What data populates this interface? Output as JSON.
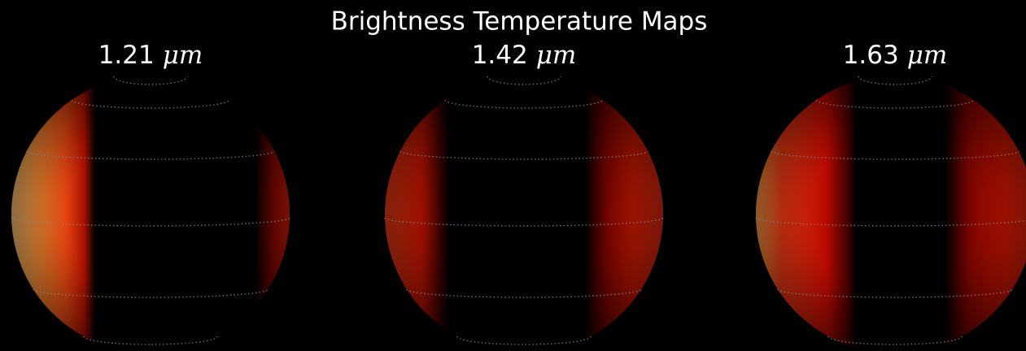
{
  "title": "Brightness Temperature Maps",
  "panels": [
    {
      "wavelength": "1.21",
      "unit": "μm"
    },
    {
      "wavelength": "1.42",
      "unit": "μm"
    },
    {
      "wavelength": "1.63",
      "unit": "μm"
    }
  ]
}
